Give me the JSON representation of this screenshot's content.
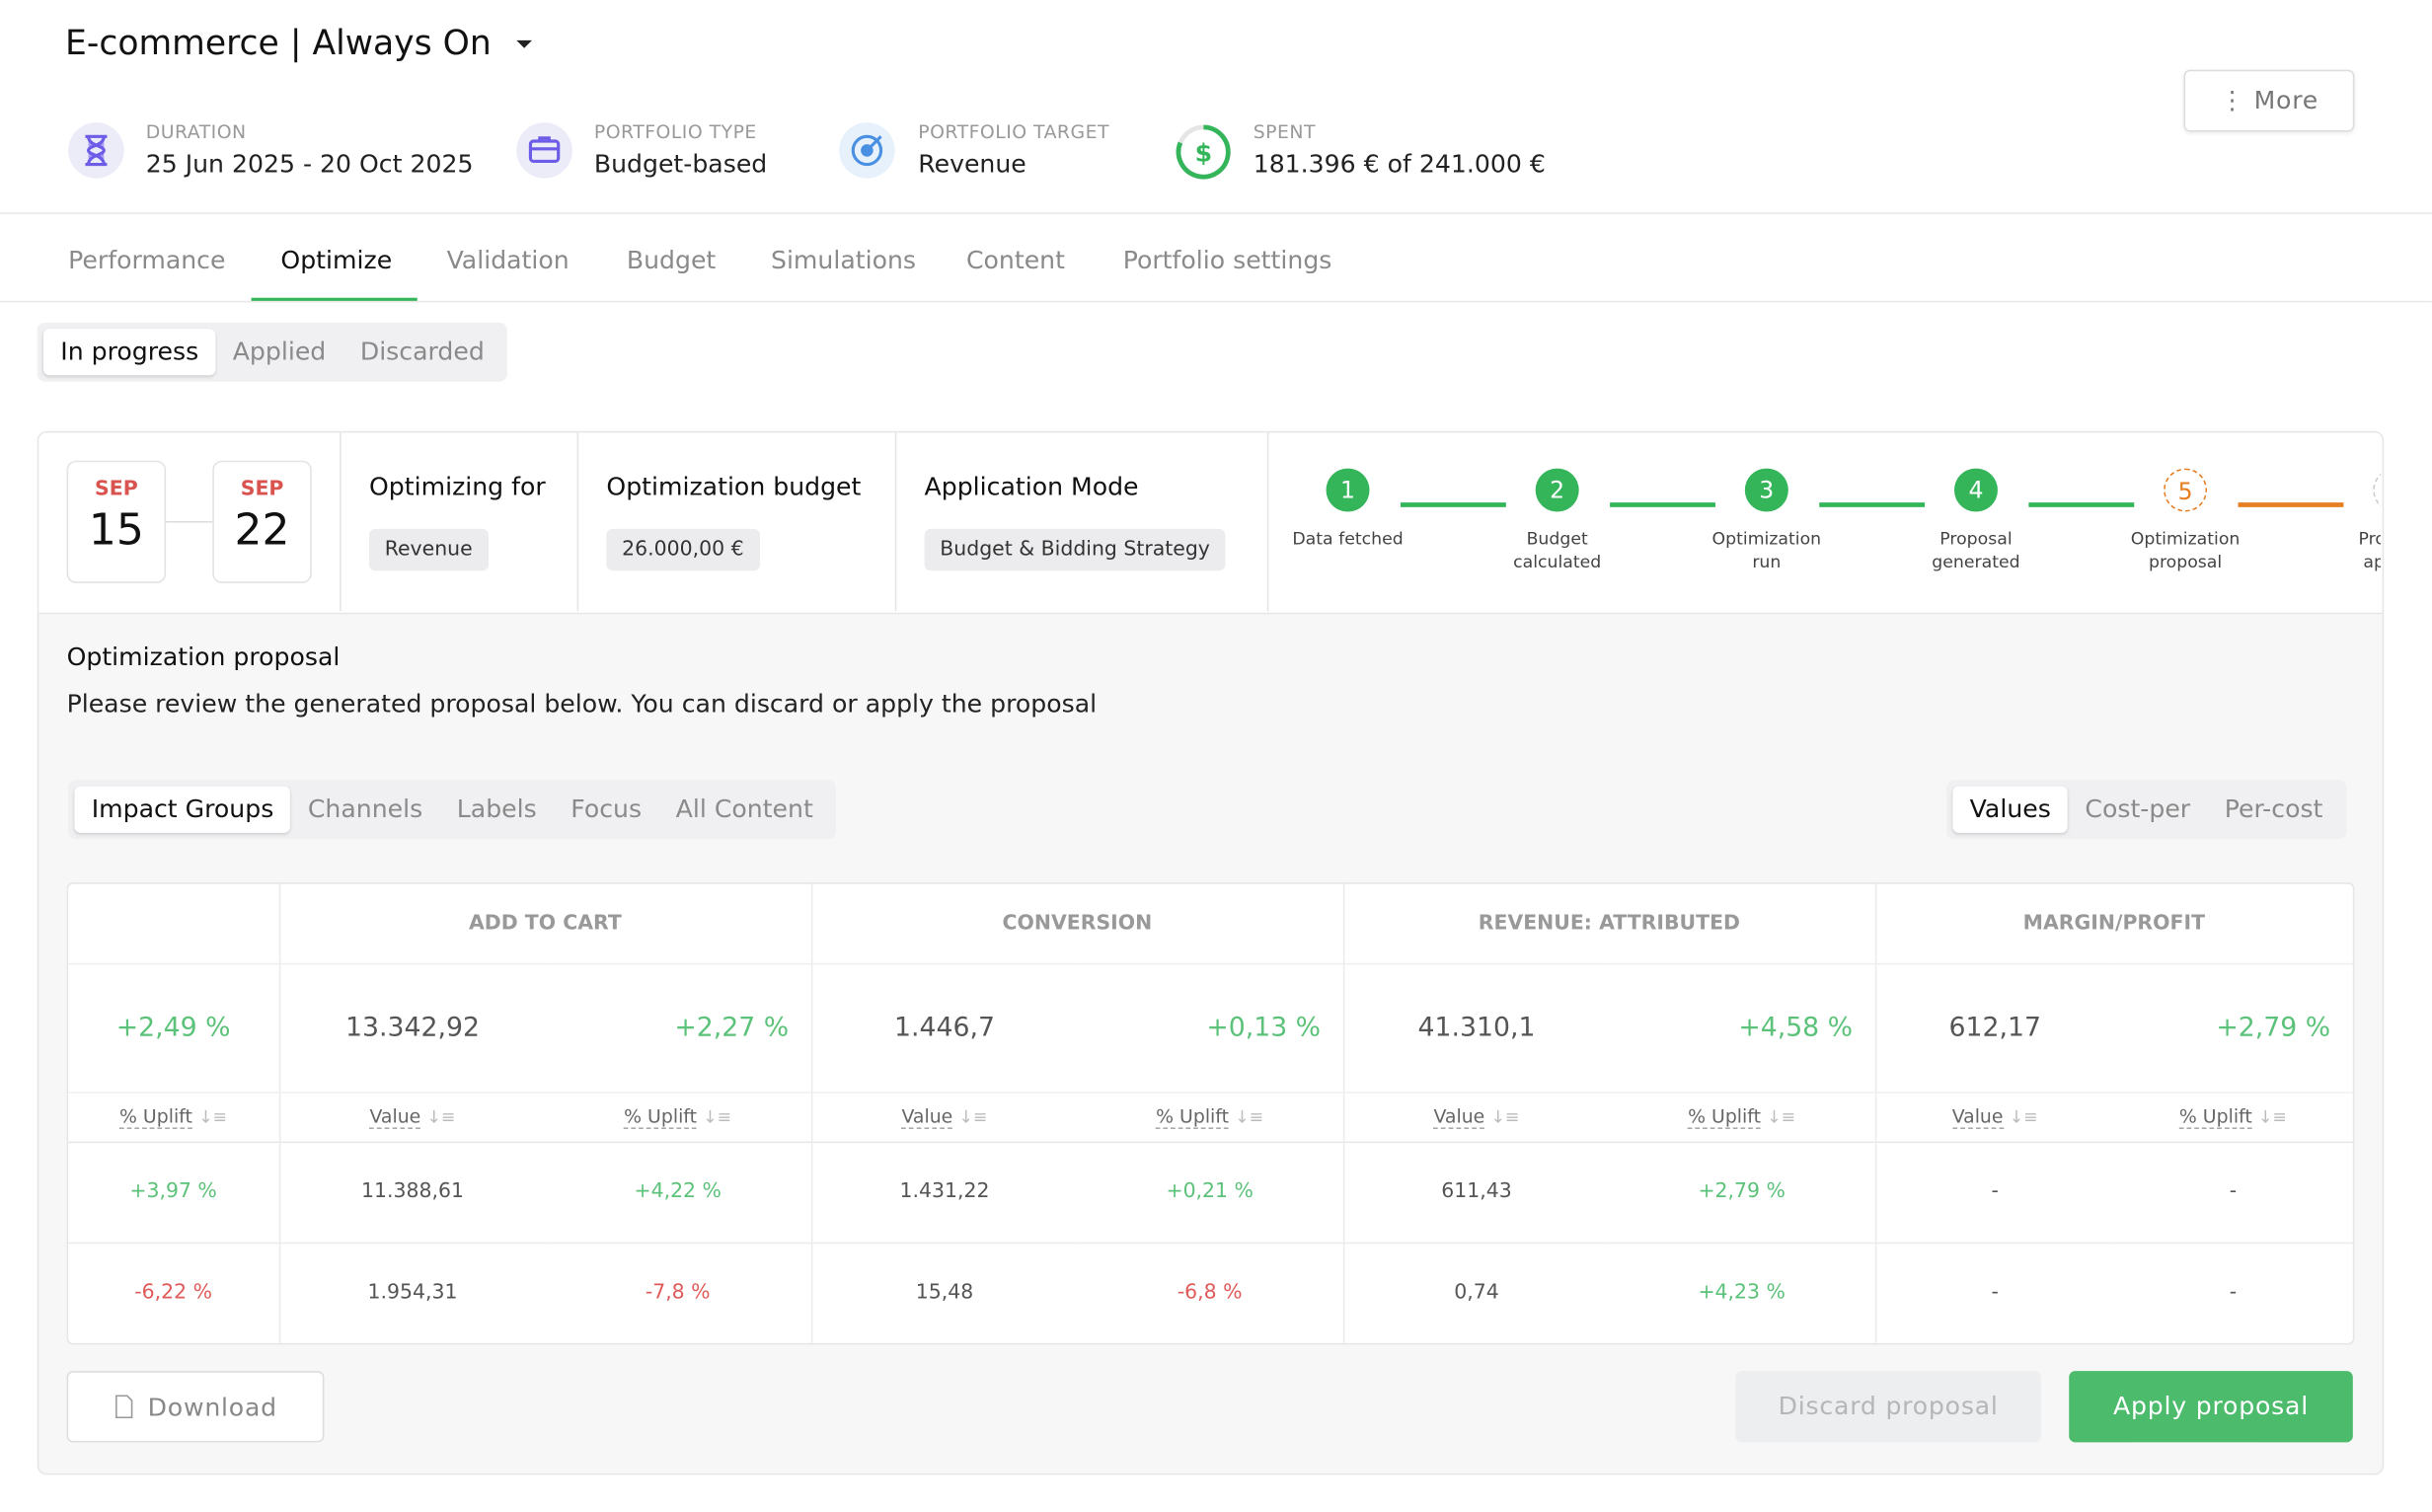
{
  "header": {
    "title": "E-commerce | Always On",
    "more": "More",
    "meta": [
      {
        "label": "DURATION",
        "value": "25 Jun 2025 - 20 Oct 2025"
      },
      {
        "label": "PORTFOLIO TYPE",
        "value": "Budget-based"
      },
      {
        "label": "PORTFOLIO TARGET",
        "value": "Revenue"
      },
      {
        "label": "SPENT",
        "value": "181.396 € of 241.000 €"
      }
    ]
  },
  "tabs": {
    "items": [
      "Performance",
      "Optimize",
      "Validation",
      "Budget",
      "Simulations",
      "Content",
      "Portfolio settings"
    ],
    "active": 1
  },
  "subtabs": {
    "items": [
      "In progress",
      "Applied",
      "Discarded"
    ],
    "active": 0
  },
  "dates": [
    {
      "month": "SEP",
      "day": "15"
    },
    {
      "month": "SEP",
      "day": "22"
    }
  ],
  "info": [
    {
      "label": "Optimizing for",
      "value": "Revenue"
    },
    {
      "label": "Optimization budget",
      "value": "26.000,00 €"
    },
    {
      "label": "Application Mode",
      "value": "Budget & Bidding Strategy"
    }
  ],
  "steps": [
    {
      "number": "1",
      "label": "Data fetched",
      "state": "done"
    },
    {
      "number": "2",
      "label": "Budget calculated",
      "state": "done"
    },
    {
      "number": "3",
      "label": "Optimization run",
      "state": "done"
    },
    {
      "number": "4",
      "label": "Proposal generated",
      "state": "done"
    },
    {
      "number": "5",
      "label": "Optimization proposal",
      "state": "current"
    },
    {
      "label": "Proposal applied",
      "state": "pending"
    }
  ],
  "proposal": {
    "title": "Optimization proposal",
    "description": "Please review the generated proposal below. You can discard or apply the proposal"
  },
  "views": {
    "items": [
      "Impact Groups",
      "Channels",
      "Labels",
      "Focus",
      "All Content"
    ],
    "active": 0
  },
  "modes": {
    "items": [
      "Values",
      "Cost-per",
      "Per-cost"
    ],
    "active": 0
  },
  "table": {
    "groups": [
      "ADD TO CART",
      "CONVERSION",
      "REVENUE: ATTRIBUTED",
      "MARGIN/PROFIT"
    ],
    "summary": [
      "+2,49 %",
      "13.342,92",
      "+2,27 %",
      "1.446,7",
      "+0,13 %",
      "41.310,1",
      "+4,58 %",
      "612,17",
      "+2,79 %"
    ],
    "subheaders": [
      "% Uplift",
      "Value",
      "% Uplift",
      "Value",
      "% Uplift",
      "Value",
      "% Uplift",
      "Value",
      "% Uplift"
    ],
    "rows": [
      [
        "+3,97 %",
        "11.388,61",
        "+4,22 %",
        "1.431,22",
        "+0,21 %",
        "611,43",
        "+2,79 %",
        "-",
        "-"
      ],
      [
        "-6,22 %",
        "1.954,31",
        "-7,8 %",
        "15,48",
        "-6,8 %",
        "0,74",
        "+4,23 %",
        "-",
        "-"
      ]
    ]
  },
  "buttons": {
    "download": "Download",
    "discard": "Discard proposal",
    "apply": "Apply proposal"
  }
}
